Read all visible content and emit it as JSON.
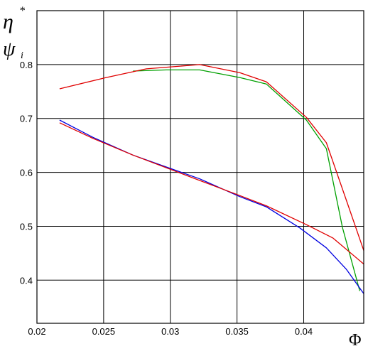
{
  "chart_data": {
    "type": "line",
    "title": "",
    "xlabel": "Φ",
    "ylabel": {
      "line1": "η",
      "line1_sup": "*",
      "line2": "ψ",
      "line2_sub": "i"
    },
    "xlim": [
      0.02,
      0.0445
    ],
    "ylim": [
      0.32,
      0.9
    ],
    "grid": true,
    "xticks": [
      {
        "value": 0.02,
        "label": "0.02"
      },
      {
        "value": 0.025,
        "label": "0.025"
      },
      {
        "value": 0.03,
        "label": "0.03"
      },
      {
        "value": 0.035,
        "label": "0.035"
      },
      {
        "value": 0.04,
        "label": "0.04"
      }
    ],
    "yticks": [
      {
        "value": 0.4,
        "label": "0.4"
      },
      {
        "value": 0.5,
        "label": "0.5"
      },
      {
        "value": 0.6,
        "label": "0.6"
      },
      {
        "value": 0.7,
        "label": "0.7"
      },
      {
        "value": 0.8,
        "label": "0.8"
      }
    ],
    "series": [
      {
        "color": "#00a000",
        "x": [
          0.0272,
          0.0297,
          0.0322,
          0.0352,
          0.0372,
          0.0402,
          0.0417,
          0.0429,
          0.0442
        ],
        "y": [
          0.788,
          0.79,
          0.79,
          0.776,
          0.764,
          0.697,
          0.644,
          0.498,
          0.38
        ]
      },
      {
        "color": "#e00000",
        "x": [
          0.0217,
          0.0252,
          0.0282,
          0.0322,
          0.0352,
          0.0372,
          0.0402,
          0.0417,
          0.0432,
          0.0445
        ],
        "y": [
          0.755,
          0.776,
          0.792,
          0.8,
          0.785,
          0.768,
          0.702,
          0.655,
          0.548,
          0.455
        ]
      },
      {
        "color": "#0000e0",
        "x": [
          0.0217,
          0.0242,
          0.0272,
          0.0322,
          0.0352,
          0.0372,
          0.0397,
          0.0417,
          0.0432,
          0.0445
        ],
        "y": [
          0.697,
          0.665,
          0.632,
          0.588,
          0.555,
          0.536,
          0.497,
          0.46,
          0.42,
          0.375
        ]
      },
      {
        "color": "#e00000",
        "x": [
          0.0217,
          0.0242,
          0.0272,
          0.0322,
          0.0352,
          0.0372,
          0.0402,
          0.0422,
          0.0445
        ],
        "y": [
          0.692,
          0.663,
          0.632,
          0.585,
          0.557,
          0.538,
          0.503,
          0.478,
          0.43
        ]
      }
    ]
  }
}
